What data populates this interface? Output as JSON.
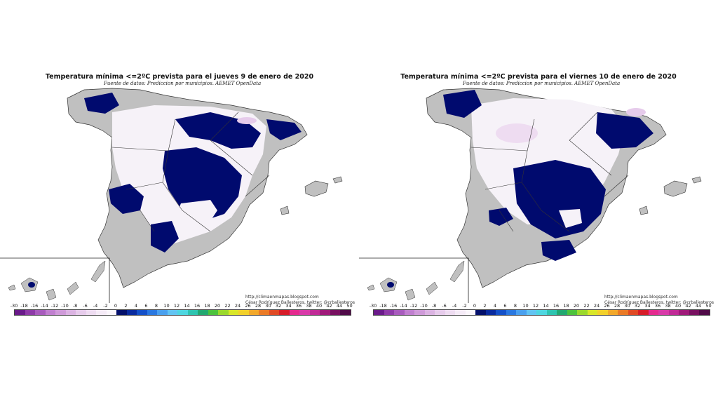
{
  "panels": [
    {
      "title": "Temperatura mínima <=2ºC prevista para el jueves 9 de enero de 2020",
      "source": "Fuente de datos: Prediccion por municipios. AEMET OpenData",
      "credit_url": "http://climaenmapas.blogspot.com",
      "credit_author": "César Rodríguez Ballesteros, twitter: @crballesteros"
    },
    {
      "title": "Temperatura mínima <=2ºC prevista para el viernes 10 de enero de 2020",
      "source": "Fuente de datos: Prediccion por municipios. AEMET OpenData",
      "credit_url": "http://climaenmapas.blogspot.com",
      "credit_author": "César Rodríguez Ballesteros, twitter: @crballesteros"
    }
  ],
  "legend": {
    "tick_labels": [
      "-30",
      "-18",
      "-16",
      "-14",
      "-12",
      "-10",
      "-8",
      "-6",
      "-4",
      "-2",
      "0",
      "2",
      "4",
      "6",
      "8",
      "10",
      "12",
      "14",
      "16",
      "18",
      "20",
      "22",
      "24",
      "26",
      "28",
      "30",
      "32",
      "34",
      "36",
      "38",
      "40",
      "42",
      "44",
      "50"
    ],
    "colors": [
      "#6a1a8a",
      "#8e3aa8",
      "#a85bbd",
      "#c07fcf",
      "#cf9ad9",
      "#dbb3e2",
      "#e6cbeb",
      "#eedcf1",
      "#f5ebf7",
      "#fbf6fc",
      "#04106a",
      "#0a2b9e",
      "#1450c8",
      "#2a78e0",
      "#4aa0ee",
      "#62c4f2",
      "#4ed6e0",
      "#2ec4b0",
      "#22a870",
      "#4cc23c",
      "#9ad82c",
      "#d8e628",
      "#f2d02a",
      "#f2a82a",
      "#ea7a26",
      "#e04a24",
      "#d61c28",
      "#e42a8e",
      "#d83aa8",
      "#c02a96",
      "#a01a7a",
      "#781060",
      "#500a48"
    ],
    "unit_colors": {
      "spain_land": "#c0c0c0",
      "frost_area": "#000a6e",
      "cold_area": "#f6f2f8",
      "borders": "#333333"
    }
  }
}
